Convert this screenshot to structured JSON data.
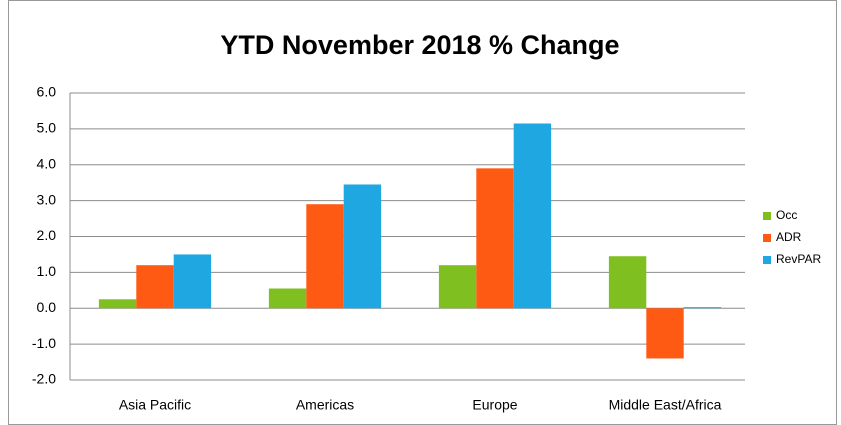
{
  "chart_data": {
    "type": "bar",
    "title": "YTD November 2018 % Change",
    "categories": [
      "Asia Pacific",
      "Americas",
      "Europe",
      "Middle East/Africa"
    ],
    "series": [
      {
        "name": "Occ",
        "color": "#7fbf1f",
        "values": [
          0.25,
          0.55,
          1.2,
          1.45
        ]
      },
      {
        "name": "ADR",
        "color": "#ff5a14",
        "values": [
          1.2,
          2.9,
          3.9,
          -1.4
        ]
      },
      {
        "name": "RevPAR",
        "color": "#1ea7e1",
        "values": [
          1.5,
          3.45,
          5.15,
          0.03
        ]
      }
    ],
    "ylim": [
      -2,
      6
    ],
    "yticks": [
      {
        "value": -2,
        "label": "-2.0"
      },
      {
        "value": -1,
        "label": "-1.0"
      },
      {
        "value": 0,
        "label": "0.0"
      },
      {
        "value": 1,
        "label": "1.0"
      },
      {
        "value": 2,
        "label": "2.0"
      },
      {
        "value": 3,
        "label": "3.0"
      },
      {
        "value": 4,
        "label": "4.0"
      },
      {
        "value": 5,
        "label": "5.0"
      },
      {
        "value": 6,
        "label": "6.0"
      }
    ],
    "grid": true,
    "legend": "right"
  }
}
